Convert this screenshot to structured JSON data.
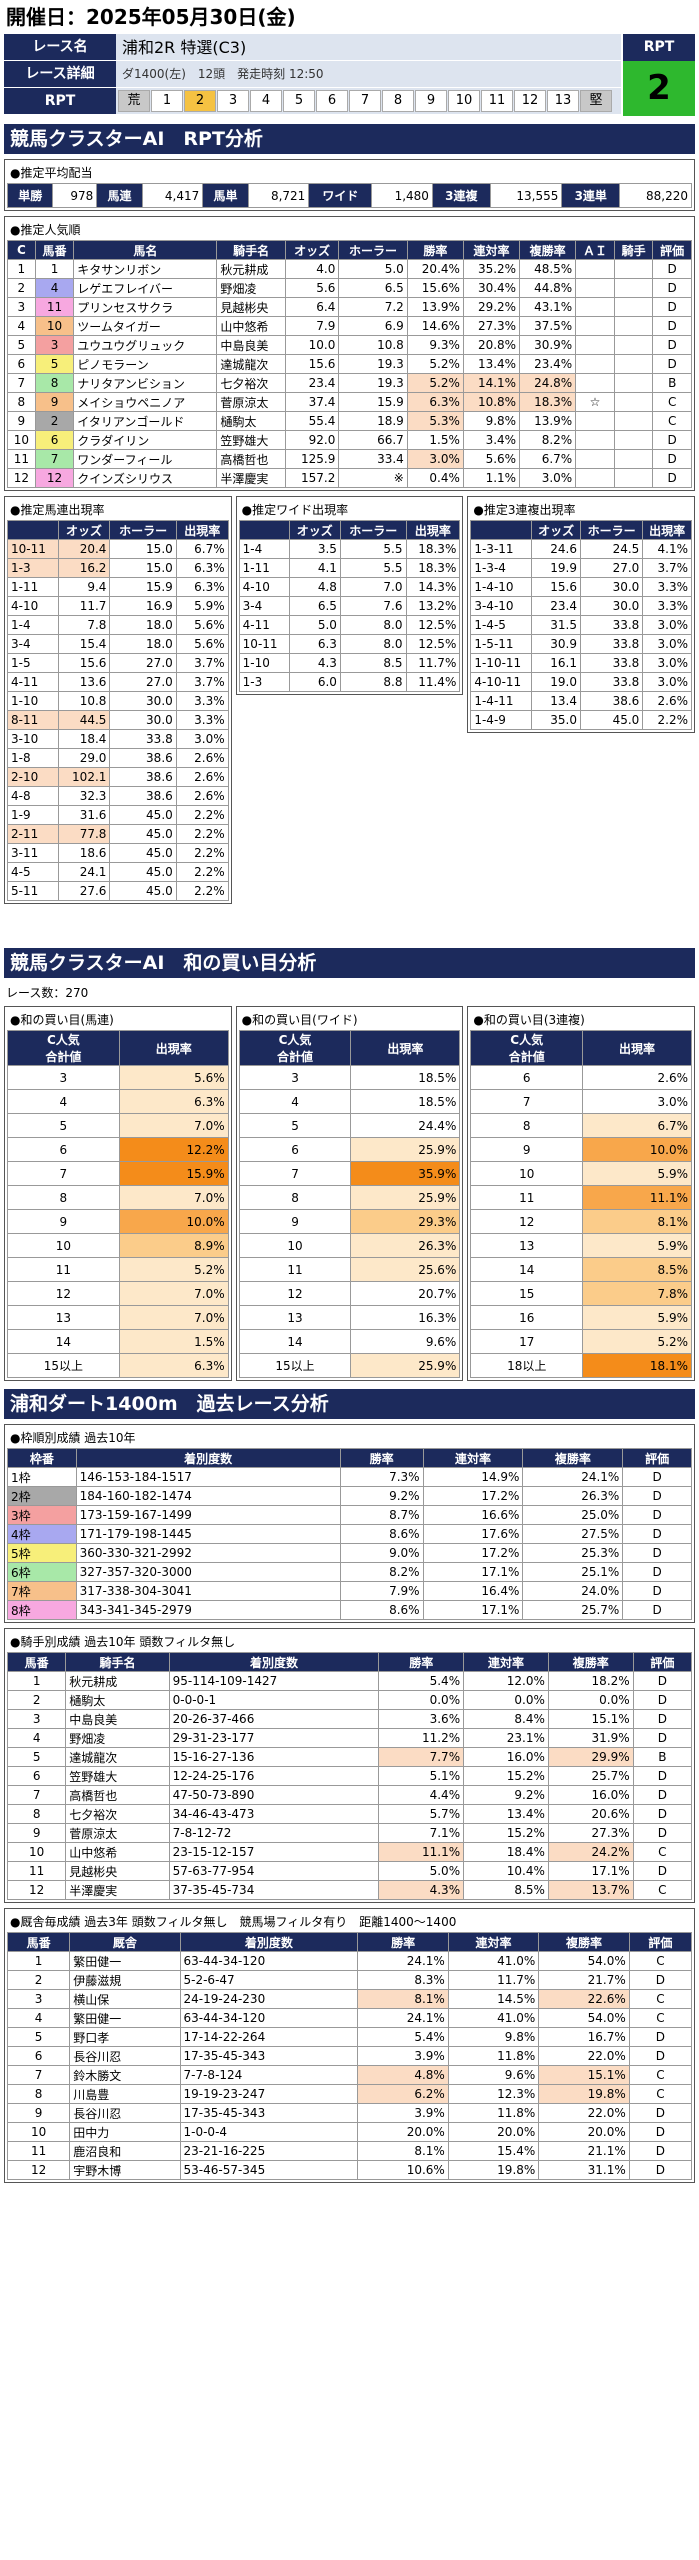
{
  "header": {
    "title": "開催日：2025年05月30日(金)"
  },
  "race": {
    "name_label": "レース名",
    "name": "浦和2R 特選(C3)",
    "detail_label": "レース詳細",
    "detail": "ダ1400(左)　12頭　発走時刻 12:50",
    "rpt_label": "RPT",
    "rpt_scale": [
      "荒",
      "1",
      "2",
      "3",
      "4",
      "5",
      "6",
      "7",
      "8",
      "9",
      "10",
      "11",
      "12",
      "13",
      "堅"
    ],
    "rpt_side_label": "RPT",
    "rpt_value": "2"
  },
  "sec1": {
    "title": "競馬クラスターAI　RPT分析"
  },
  "avg": {
    "title": "●推定平均配当",
    "items": [
      {
        "label": "単勝",
        "value": "978"
      },
      {
        "label": "馬連",
        "value": "4,417"
      },
      {
        "label": "馬単",
        "value": "8,721"
      },
      {
        "label": "ワイド",
        "value": "1,480"
      },
      {
        "label": "3連複",
        "value": "13,555"
      },
      {
        "label": "3連単",
        "value": "88,220"
      }
    ]
  },
  "pop": {
    "title": "●推定人気順",
    "headers": [
      "C",
      "馬番",
      "馬名",
      "騎手名",
      "オッズ",
      "ホーラー",
      "勝率",
      "連対率",
      "複勝率",
      "ＡＩ",
      "騎手",
      "評価"
    ],
    "rows": [
      [
        "1",
        "1",
        "キタサンリボン",
        "秋元耕成",
        "4.0",
        "5.0",
        "20.4%",
        "35.2%",
        "48.5%",
        "",
        "",
        "D"
      ],
      [
        "2",
        "4",
        "レゲエフレイバー",
        "野畑凌",
        "5.6",
        "6.5",
        "15.6%",
        "30.4%",
        "44.8%",
        "",
        "",
        "D"
      ],
      [
        "3",
        "11",
        "プリンセスサクラ",
        "見越彬央",
        "6.4",
        "7.2",
        "13.9%",
        "29.2%",
        "43.1%",
        "",
        "",
        "D"
      ],
      [
        "4",
        "10",
        "ツームタイガー",
        "山中悠希",
        "7.9",
        "6.9",
        "14.6%",
        "27.3%",
        "37.5%",
        "",
        "",
        "D"
      ],
      [
        "5",
        "3",
        "ユウユウグリュック",
        "中島良美",
        "10.0",
        "10.8",
        "9.3%",
        "20.8%",
        "30.9%",
        "",
        "",
        "D"
      ],
      [
        "6",
        "5",
        "ピノモラーン",
        "達城龍次",
        "15.6",
        "19.3",
        "5.2%",
        "13.4%",
        "23.4%",
        "",
        "",
        "D"
      ],
      [
        "7",
        "8",
        "ナリタアンビション",
        "七夕裕次",
        "23.4",
        "19.3",
        "5.2%",
        "14.1%",
        "24.8%",
        "",
        "",
        "B"
      ],
      [
        "8",
        "9",
        "メイショウペニノア",
        "菅原涼太",
        "37.4",
        "15.9",
        "6.3%",
        "10.8%",
        "18.3%",
        "☆",
        "",
        "C"
      ],
      [
        "9",
        "2",
        "イタリアンゴールド",
        "樋駒太",
        "55.4",
        "18.9",
        "5.3%",
        "9.8%",
        "13.9%",
        "",
        "",
        "C"
      ],
      [
        "10",
        "6",
        "クラダイリン",
        "笠野雄大",
        "92.0",
        "66.7",
        "1.5%",
        "3.4%",
        "8.2%",
        "",
        "",
        "D"
      ],
      [
        "11",
        "7",
        "ワンダーフィール",
        "高橋哲也",
        "125.9",
        "33.4",
        "3.0%",
        "5.6%",
        "6.7%",
        "",
        "",
        "D"
      ],
      [
        "12",
        "12",
        "クインズシリウス",
        "半澤慶実",
        "157.2",
        "※",
        "0.4%",
        "1.1%",
        "3.0%",
        "",
        "",
        "D"
      ]
    ]
  },
  "umaren": {
    "title": "●推定馬連出現率",
    "headers": [
      "",
      "オッズ",
      "ホーラー",
      "出現率"
    ],
    "rows": [
      [
        "10-11",
        "20.4",
        "15.0",
        "6.7%"
      ],
      [
        "1-3",
        "16.2",
        "15.0",
        "6.3%"
      ],
      [
        "1-11",
        "9.4",
        "15.9",
        "6.3%"
      ],
      [
        "4-10",
        "11.7",
        "16.9",
        "5.9%"
      ],
      [
        "1-4",
        "7.8",
        "18.0",
        "5.6%"
      ],
      [
        "3-4",
        "15.4",
        "18.0",
        "5.6%"
      ],
      [
        "1-5",
        "15.6",
        "27.0",
        "3.7%"
      ],
      [
        "4-11",
        "13.6",
        "27.0",
        "3.7%"
      ],
      [
        "1-10",
        "10.8",
        "30.0",
        "3.3%"
      ],
      [
        "8-11",
        "44.5",
        "30.0",
        "3.3%"
      ],
      [
        "3-10",
        "18.4",
        "33.8",
        "3.0%"
      ],
      [
        "1-8",
        "29.0",
        "38.6",
        "2.6%"
      ],
      [
        "2-10",
        "102.1",
        "38.6",
        "2.6%"
      ],
      [
        "4-8",
        "32.3",
        "38.6",
        "2.6%"
      ],
      [
        "1-9",
        "31.6",
        "45.0",
        "2.2%"
      ],
      [
        "2-11",
        "77.8",
        "45.0",
        "2.2%"
      ],
      [
        "3-11",
        "18.6",
        "45.0",
        "2.2%"
      ],
      [
        "4-5",
        "24.1",
        "45.0",
        "2.2%"
      ],
      [
        "5-11",
        "27.6",
        "45.0",
        "2.2%"
      ]
    ]
  },
  "wide": {
    "title": "●推定ワイド出現率",
    "headers": [
      "",
      "オッズ",
      "ホーラー",
      "出現率"
    ],
    "rows": [
      [
        "1-4",
        "3.5",
        "5.5",
        "18.3%"
      ],
      [
        "1-11",
        "4.1",
        "5.5",
        "18.3%"
      ],
      [
        "4-10",
        "4.8",
        "7.0",
        "14.3%"
      ],
      [
        "3-4",
        "6.5",
        "7.6",
        "13.2%"
      ],
      [
        "4-11",
        "5.0",
        "8.0",
        "12.5%"
      ],
      [
        "10-11",
        "6.3",
        "8.0",
        "12.5%"
      ],
      [
        "1-10",
        "4.3",
        "8.5",
        "11.7%"
      ],
      [
        "1-3",
        "6.0",
        "8.8",
        "11.4%"
      ]
    ]
  },
  "trio": {
    "title": "●推定3連複出現率",
    "headers": [
      "",
      "オッズ",
      "ホーラー",
      "出現率"
    ],
    "rows": [
      [
        "1-3-11",
        "24.6",
        "24.5",
        "4.1%"
      ],
      [
        "1-3-4",
        "19.9",
        "27.0",
        "3.7%"
      ],
      [
        "1-4-10",
        "15.6",
        "30.0",
        "3.3%"
      ],
      [
        "3-4-10",
        "23.4",
        "30.0",
        "3.3%"
      ],
      [
        "1-4-5",
        "31.5",
        "33.8",
        "3.0%"
      ],
      [
        "1-5-11",
        "30.9",
        "33.8",
        "3.0%"
      ],
      [
        "1-10-11",
        "16.1",
        "33.8",
        "3.0%"
      ],
      [
        "4-10-11",
        "19.0",
        "33.8",
        "3.0%"
      ],
      [
        "1-4-11",
        "13.4",
        "38.6",
        "2.6%"
      ],
      [
        "1-4-9",
        "35.0",
        "45.0",
        "2.2%"
      ]
    ]
  },
  "sec2": {
    "title": "競馬クラスターAI　和の買い目分析",
    "race_count": "レース数：270"
  },
  "wa_umaren": {
    "title": "●和の買い目(馬連)",
    "h1": "C人気",
    "h1b": "合計値",
    "h2": "出現率",
    "rows": [
      [
        "3",
        "5.6%",
        "o1"
      ],
      [
        "4",
        "6.3%",
        "o1"
      ],
      [
        "5",
        "7.0%",
        "o1"
      ],
      [
        "6",
        "12.2%",
        "o4"
      ],
      [
        "7",
        "15.9%",
        "o4"
      ],
      [
        "8",
        "7.0%",
        "o1"
      ],
      [
        "9",
        "10.0%",
        "o3"
      ],
      [
        "10",
        "8.9%",
        "o2"
      ],
      [
        "11",
        "5.2%",
        "o1"
      ],
      [
        "12",
        "7.0%",
        "o1"
      ],
      [
        "13",
        "7.0%",
        "o1"
      ],
      [
        "14",
        "1.5%",
        "o1"
      ],
      [
        "15以上",
        "6.3%",
        "o1"
      ]
    ]
  },
  "wa_wide": {
    "title": "●和の買い目(ワイド)",
    "h1": "C人気",
    "h1b": "合計値",
    "h2": "出現率",
    "rows": [
      [
        "3",
        "18.5%",
        "o0"
      ],
      [
        "4",
        "18.5%",
        "o0"
      ],
      [
        "5",
        "24.4%",
        "o0"
      ],
      [
        "6",
        "25.9%",
        "o1"
      ],
      [
        "7",
        "35.9%",
        "o4"
      ],
      [
        "8",
        "25.9%",
        "o1"
      ],
      [
        "9",
        "29.3%",
        "o2"
      ],
      [
        "10",
        "26.3%",
        "o1"
      ],
      [
        "11",
        "25.6%",
        "o1"
      ],
      [
        "12",
        "20.7%",
        "o0"
      ],
      [
        "13",
        "16.3%",
        "o0"
      ],
      [
        "14",
        "9.6%",
        "o0"
      ],
      [
        "15以上",
        "25.9%",
        "o1"
      ]
    ]
  },
  "wa_trio": {
    "title": "●和の買い目(3連複)",
    "h1": "C人気",
    "h1b": "合計値",
    "h2": "出現率",
    "rows": [
      [
        "6",
        "2.6%",
        "o0"
      ],
      [
        "7",
        "3.0%",
        "o0"
      ],
      [
        "8",
        "6.7%",
        "o1"
      ],
      [
        "9",
        "10.0%",
        "o3"
      ],
      [
        "10",
        "5.9%",
        "o1"
      ],
      [
        "11",
        "11.1%",
        "o3"
      ],
      [
        "12",
        "8.1%",
        "o2"
      ],
      [
        "13",
        "5.9%",
        "o1"
      ],
      [
        "14",
        "8.5%",
        "o2"
      ],
      [
        "15",
        "7.8%",
        "o2"
      ],
      [
        "16",
        "5.9%",
        "o1"
      ],
      [
        "17",
        "5.2%",
        "o1"
      ],
      [
        "18以上",
        "18.1%",
        "o4"
      ]
    ]
  },
  "sec3": {
    "title": "浦和ダート1400m　過去レース分析"
  },
  "frame": {
    "title": "●枠順別成績 過去10年",
    "headers": [
      "枠番",
      "着別度数",
      "勝率",
      "連対率",
      "複勝率",
      "評価"
    ],
    "rows": [
      [
        "1枠",
        "146-153-184-1517",
        "7.3%",
        "14.9%",
        "24.1%",
        "D"
      ],
      [
        "2枠",
        "184-160-182-1474",
        "9.2%",
        "17.2%",
        "26.3%",
        "D"
      ],
      [
        "3枠",
        "173-159-167-1499",
        "8.7%",
        "16.6%",
        "25.0%",
        "D"
      ],
      [
        "4枠",
        "171-179-198-1445",
        "8.6%",
        "17.6%",
        "27.5%",
        "D"
      ],
      [
        "5枠",
        "360-330-321-2992",
        "9.0%",
        "17.2%",
        "25.3%",
        "D"
      ],
      [
        "6枠",
        "327-357-320-3000",
        "8.2%",
        "17.1%",
        "25.1%",
        "D"
      ],
      [
        "7枠",
        "317-338-304-3041",
        "7.9%",
        "16.4%",
        "24.0%",
        "D"
      ],
      [
        "8枠",
        "343-341-345-2979",
        "8.6%",
        "17.1%",
        "25.7%",
        "D"
      ]
    ]
  },
  "jockey": {
    "title": "●騎手別成績 過去10年 頭数フィルタ無し",
    "headers": [
      "馬番",
      "騎手名",
      "着別度数",
      "勝率",
      "連対率",
      "複勝率",
      "評価"
    ],
    "rows": [
      [
        "1",
        "秋元耕成",
        "95-114-109-1427",
        "5.4%",
        "12.0%",
        "18.2%",
        "D",
        ""
      ],
      [
        "2",
        "樋駒太",
        "0-0-0-1",
        "0.0%",
        "0.0%",
        "0.0%",
        "D",
        ""
      ],
      [
        "3",
        "中島良美",
        "20-26-37-466",
        "3.6%",
        "8.4%",
        "15.1%",
        "D",
        ""
      ],
      [
        "4",
        "野畑凌",
        "29-31-23-177",
        "11.2%",
        "23.1%",
        "31.9%",
        "D",
        ""
      ],
      [
        "5",
        "達城龍次",
        "15-16-27-136",
        "7.7%",
        "16.0%",
        "29.9%",
        "B",
        "pk"
      ],
      [
        "6",
        "笠野雄大",
        "12-24-25-176",
        "5.1%",
        "15.2%",
        "25.7%",
        "D",
        ""
      ],
      [
        "7",
        "高橋哲也",
        "47-50-73-890",
        "4.4%",
        "9.2%",
        "16.0%",
        "D",
        ""
      ],
      [
        "8",
        "七夕裕次",
        "34-46-43-473",
        "5.7%",
        "13.4%",
        "20.6%",
        "D",
        ""
      ],
      [
        "9",
        "菅原涼太",
        "7-8-12-72",
        "7.1%",
        "15.2%",
        "27.3%",
        "D",
        ""
      ],
      [
        "10",
        "山中悠希",
        "23-15-12-157",
        "11.1%",
        "18.4%",
        "24.2%",
        "C",
        "pk"
      ],
      [
        "11",
        "見越彬央",
        "57-63-77-954",
        "5.0%",
        "10.4%",
        "17.1%",
        "D",
        ""
      ],
      [
        "12",
        "半澤慶実",
        "37-35-45-734",
        "4.3%",
        "8.5%",
        "13.7%",
        "C",
        "pk"
      ]
    ]
  },
  "trainer": {
    "title": "●厩舎毎成績 過去3年 頭数フィルタ無し　競馬場フィルタ有り　距離1400～1400",
    "headers": [
      "馬番",
      "厩舎",
      "着別度数",
      "勝率",
      "連対率",
      "複勝率",
      "評価"
    ],
    "rows": [
      [
        "1",
        "繁田健一",
        "63-44-34-120",
        "24.1%",
        "41.0%",
        "54.0%",
        "C",
        ""
      ],
      [
        "2",
        "伊藤滋規",
        "5-2-6-47",
        "8.3%",
        "11.7%",
        "21.7%",
        "D",
        ""
      ],
      [
        "3",
        "横山保",
        "24-19-24-230",
        "8.1%",
        "14.5%",
        "22.6%",
        "C",
        "pk"
      ],
      [
        "4",
        "繁田健一",
        "63-44-34-120",
        "24.1%",
        "41.0%",
        "54.0%",
        "C",
        ""
      ],
      [
        "5",
        "野口孝",
        "17-14-22-264",
        "5.4%",
        "9.8%",
        "16.7%",
        "D",
        ""
      ],
      [
        "6",
        "長谷川忍",
        "17-35-45-343",
        "3.9%",
        "11.8%",
        "22.0%",
        "D",
        ""
      ],
      [
        "7",
        "鈴木勝文",
        "7-7-8-124",
        "4.8%",
        "9.6%",
        "15.1%",
        "C",
        "pk"
      ],
      [
        "8",
        "川島豊",
        "19-19-23-247",
        "6.2%",
        "12.3%",
        "19.8%",
        "C",
        "pk"
      ],
      [
        "9",
        "長谷川忍",
        "17-35-45-343",
        "3.9%",
        "11.8%",
        "22.0%",
        "D",
        ""
      ],
      [
        "10",
        "田中力",
        "1-0-0-4",
        "20.0%",
        "20.0%",
        "20.0%",
        "D",
        ""
      ],
      [
        "11",
        "鹿沼良和",
        "23-21-16-225",
        "8.1%",
        "15.4%",
        "21.1%",
        "D",
        ""
      ],
      [
        "12",
        "宇野木博",
        "53-46-57-345",
        "10.6%",
        "19.8%",
        "31.1%",
        "D",
        ""
      ]
    ]
  }
}
